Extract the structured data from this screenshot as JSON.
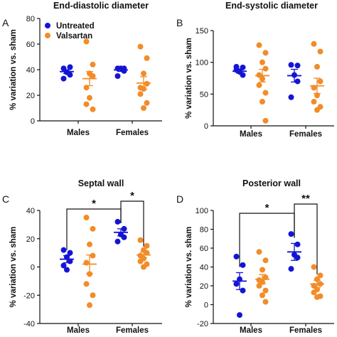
{
  "colors": {
    "untreated": "#1414d6",
    "valsartan": "#f28c28"
  },
  "chart_data": [
    {
      "type": "scatter",
      "panel_letter": "A",
      "title": "End-diastolic diameter",
      "ylabel": "% variation vs. sham",
      "categories": [
        "Males",
        "Females"
      ],
      "ylim": [
        0,
        80
      ],
      "yticks": [
        0,
        20,
        40,
        60,
        80
      ],
      "legend": {
        "placement": "top-left",
        "entries": [
          "Untreated",
          "Valsartan"
        ]
      },
      "series": [
        {
          "name": "Untreated",
          "color": "#1414d6",
          "points": [
            [
              41,
              42,
              38,
              36,
              33,
              38
            ],
            [
              41,
              41,
              41,
              39,
              35
            ]
          ],
          "mean": [
            38.5,
            39.8
          ],
          "sem": [
            1.5,
            1.2
          ]
        },
        {
          "name": "Valsartan",
          "color": "#f28c28",
          "points": [
            [
              62,
              44,
              37,
              35,
              26,
              18,
              13,
              9
            ],
            [
              58,
              49,
              37,
              29,
              26,
              25,
              21,
              14,
              10
            ]
          ],
          "mean": [
            33,
            29.5
          ],
          "sem": [
            5.5,
            5
          ]
        }
      ],
      "significance": []
    },
    {
      "type": "scatter",
      "panel_letter": "B",
      "title": "End-systolic diameter",
      "ylabel": "% variation vs. sham",
      "categories": [
        "Males",
        "Females"
      ],
      "ylim": [
        0,
        150
      ],
      "yticks": [
        0,
        50,
        100,
        150
      ],
      "series": [
        {
          "name": "Untreated",
          "color": "#1414d6",
          "points": [
            [
              93,
              92,
              85,
              80,
              88,
              86
            ],
            [
              96,
              95,
              80,
              70,
              45
            ]
          ],
          "mean": [
            86,
            79
          ],
          "sem": [
            3,
            10
          ]
        },
        {
          "name": "Valsartan",
          "color": "#f28c28",
          "points": [
            [
              127,
              115,
              100,
              90,
              80,
              74,
              64,
              52,
              38,
              8
            ],
            [
              129,
              117,
              93,
              70,
              60,
              48,
              38,
              30,
              25
            ]
          ],
          "mean": [
            79,
            63
          ],
          "sem": [
            10,
            12
          ]
        }
      ],
      "significance": []
    },
    {
      "type": "scatter",
      "panel_letter": "C",
      "title": "Septal wall",
      "ylabel": "% variation vs. sham",
      "categories": [
        "Males",
        "Females"
      ],
      "ylim": [
        -40,
        40
      ],
      "yticks": [
        -40,
        -20,
        0,
        20,
        40
      ],
      "series": [
        {
          "name": "Untreated",
          "color": "#1414d6",
          "points": [
            [
              12,
              10,
              7,
              4,
              1,
              -2
            ],
            [
              32,
              27,
              23,
              21,
              18
            ]
          ],
          "mean": [
            5.5,
            24.5
          ],
          "sem": [
            2.5,
            2.5
          ]
        },
        {
          "name": "Valsartan",
          "color": "#f28c28",
          "points": [
            [
              35,
              27,
              16,
              8,
              3,
              -5,
              -12,
              -20,
              -27
            ],
            [
              19,
              15,
              12,
              10,
              8,
              6,
              4,
              2,
              0
            ]
          ],
          "mean": [
            2,
            8.5
          ],
          "sem": [
            6.5,
            2
          ]
        }
      ],
      "significance": [
        {
          "from": [
            0,
            0
          ],
          "to": [
            1,
            0
          ],
          "label": "*"
        },
        {
          "from": [
            1,
            0
          ],
          "to": [
            1,
            1
          ],
          "label": "*"
        }
      ]
    },
    {
      "type": "scatter",
      "panel_letter": "D",
      "title": "Posterior wall",
      "ylabel": "% variation vs. sham",
      "categories": [
        "Males",
        "Females"
      ],
      "ylim": [
        -20,
        100
      ],
      "yticks": [
        -20,
        0,
        20,
        40,
        60,
        80,
        100
      ],
      "series": [
        {
          "name": "Untreated",
          "color": "#1414d6",
          "points": [
            [
              51,
              42,
              27,
              15,
              22,
              -11
            ],
            [
              75,
              64,
              53,
              50,
              38
            ]
          ],
          "mean": [
            25,
            56
          ],
          "sem": [
            9,
            9
          ]
        },
        {
          "name": "Valsartan",
          "color": "#f28c28",
          "points": [
            [
              56,
              47,
              37,
              29,
              26,
              24,
              20,
              15,
              10,
              3
            ],
            [
              40,
              31,
              27,
              22,
              20,
              16,
              13,
              9,
              8
            ]
          ],
          "mean": [
            27,
            22
          ],
          "sem": [
            5,
            4
          ]
        }
      ],
      "significance": [
        {
          "from": [
            0,
            0
          ],
          "to": [
            1,
            0
          ],
          "label": "*"
        },
        {
          "from": [
            1,
            0
          ],
          "to": [
            1,
            1
          ],
          "label": "**"
        }
      ]
    }
  ]
}
